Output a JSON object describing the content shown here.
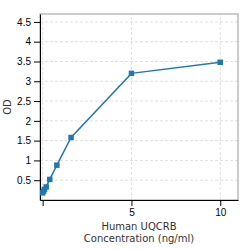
{
  "chart_data": {
    "type": "line",
    "x": [
      0,
      0.05,
      0.1,
      0.2,
      0.4,
      0.8,
      1.6,
      5,
      10
    ],
    "values": [
      0.18,
      0.22,
      0.27,
      0.33,
      0.52,
      0.88,
      1.58,
      3.2,
      3.48
    ],
    "xlabel": "Human UQCRB\nConcentration (ng/ml)",
    "ylabel": "OD",
    "xlim": [
      -0.15,
      11
    ],
    "ylim": [
      0.0,
      4.7
    ],
    "xticks": [
      {
        "value": 0,
        "label": null
      },
      5,
      10
    ],
    "yticks": [
      0.5,
      1,
      1.5,
      2,
      2.5,
      3,
      3.5,
      4,
      4.5
    ],
    "grid": true,
    "marker": "square"
  }
}
